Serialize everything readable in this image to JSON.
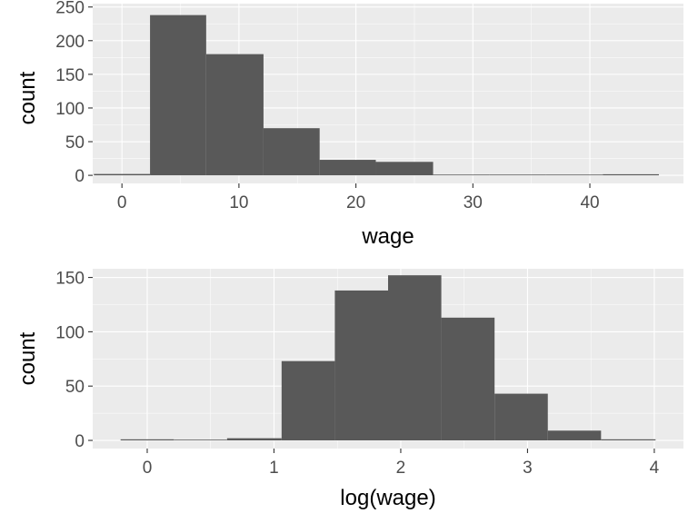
{
  "chart_data": [
    {
      "type": "histogram",
      "xlabel": "wage",
      "ylabel": "count",
      "xlim": [
        -2.5,
        48
      ],
      "ylim": [
        -12,
        255
      ],
      "x_ticks": [
        0,
        10,
        20,
        30,
        40
      ],
      "y_ticks": [
        0,
        50,
        100,
        150,
        200,
        250
      ],
      "bins": [
        {
          "x0": -2.4,
          "x1": 2.4,
          "count": 2
        },
        {
          "x0": 2.4,
          "x1": 7.2,
          "count": 238
        },
        {
          "x0": 7.2,
          "x1": 12.1,
          "count": 180
        },
        {
          "x0": 12.1,
          "x1": 16.9,
          "count": 70
        },
        {
          "x0": 16.9,
          "x1": 21.7,
          "count": 23
        },
        {
          "x0": 21.7,
          "x1": 26.6,
          "count": 20
        },
        {
          "x0": 26.6,
          "x1": 31.4,
          "count": 0
        },
        {
          "x0": 31.4,
          "x1": 36.2,
          "count": 0
        },
        {
          "x0": 36.2,
          "x1": 41.1,
          "count": 0
        },
        {
          "x0": 41.1,
          "x1": 45.9,
          "count": 1
        }
      ],
      "grid": true
    },
    {
      "type": "histogram",
      "xlabel": "log(wage)",
      "ylabel": "count",
      "xlim": [
        -0.43,
        4.23
      ],
      "ylim": [
        -7.5,
        158
      ],
      "x_ticks": [
        0,
        1,
        2,
        3,
        4
      ],
      "y_ticks": [
        0,
        50,
        100,
        150
      ],
      "bins": [
        {
          "x0": -0.21,
          "x1": 0.21,
          "count": 1
        },
        {
          "x0": 0.21,
          "x1": 0.63,
          "count": 0
        },
        {
          "x0": 0.63,
          "x1": 1.06,
          "count": 2
        },
        {
          "x0": 1.06,
          "x1": 1.48,
          "count": 73
        },
        {
          "x0": 1.48,
          "x1": 1.9,
          "count": 138
        },
        {
          "x0": 1.9,
          "x1": 2.32,
          "count": 152
        },
        {
          "x0": 2.32,
          "x1": 2.74,
          "count": 113
        },
        {
          "x0": 2.74,
          "x1": 3.16,
          "count": 43
        },
        {
          "x0": 3.16,
          "x1": 3.58,
          "count": 9
        },
        {
          "x0": 3.58,
          "x1": 4.01,
          "count": 1
        }
      ],
      "grid": true
    }
  ]
}
